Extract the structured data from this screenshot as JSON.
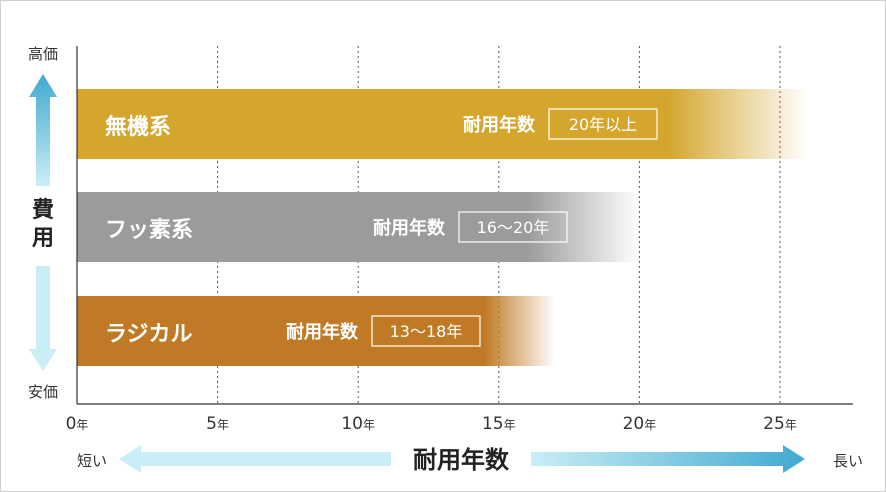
{
  "chart_data": {
    "type": "bar",
    "orientation": "horizontal",
    "xlim": [
      0,
      27
    ],
    "x_ticks": [
      {
        "value": 0,
        "num": "0",
        "unit": "年"
      },
      {
        "value": 5,
        "num": "5",
        "unit": "年"
      },
      {
        "value": 10,
        "num": "10",
        "unit": "年"
      },
      {
        "value": 15,
        "num": "15",
        "unit": "年"
      },
      {
        "value": 20,
        "num": "20",
        "unit": "年"
      },
      {
        "value": 25,
        "num": "25",
        "unit": "年"
      }
    ],
    "grid": {
      "vertical_dotted": true
    },
    "xlabel": "耐用年数",
    "x_direction_labels": {
      "left": "短い",
      "right": "長い"
    },
    "ylabel": "費用",
    "y_direction_labels": {
      "top": "高価",
      "bottom": "安価"
    },
    "series": [
      {
        "name": "無機系",
        "label_title": "耐用年数",
        "range_label": "20年以上",
        "start": 0,
        "end": 26,
        "fade_from": 21,
        "color": "#d4a62e"
      },
      {
        "name": "フッ素系",
        "label_title": "耐用年数",
        "range_label": "16〜20年",
        "start": 0,
        "end": 20,
        "fade_from": 16,
        "color": "#9b9b9b"
      },
      {
        "name": "ラジカル",
        "label_title": "耐用年数",
        "range_label": "13〜18年",
        "start": 0,
        "end": 17,
        "fade_from": 14.5,
        "color": "#c07a26"
      }
    ],
    "arrow_colors": {
      "dark": "#3fa9d0",
      "light": "#c9eef6"
    }
  }
}
